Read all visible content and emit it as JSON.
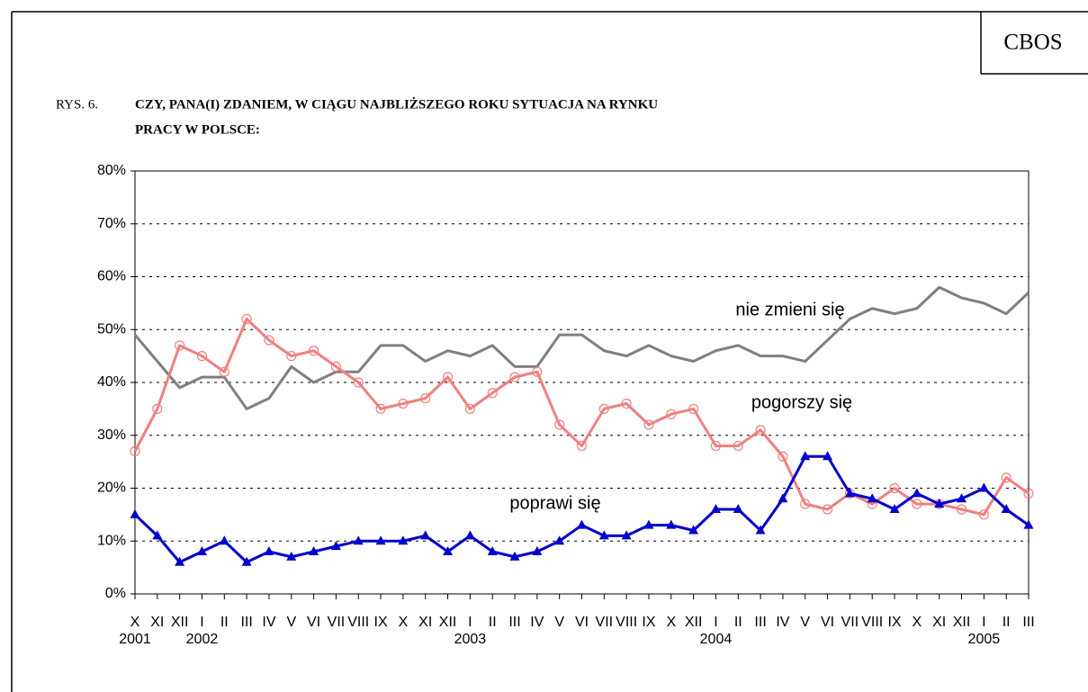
{
  "header": "CBOS",
  "chart_data": {
    "type": "line",
    "figure_label": "RYS. 6.",
    "title": [
      "CZY, PANA(I) ZDANIEM, W CIĄGU NAJBLIŻSZEGO ROKU SYTUACJA NA RYNKU",
      "PRACY W POLSCE:"
    ],
    "categories": [
      "X",
      "XI",
      "XII",
      "I",
      "II",
      "III",
      "IV",
      "V",
      "VI",
      "VII",
      "VIII",
      "IX",
      "X",
      "XI",
      "XII",
      "I",
      "II",
      "III",
      "IV",
      "V",
      "VI",
      "VII",
      "VIII",
      "IX",
      "X",
      "XII",
      "I",
      "II",
      "III",
      "IV",
      "V",
      "VI",
      "VII",
      "VIII",
      "IX",
      "X",
      "XI",
      "XII",
      "I",
      "II",
      "III"
    ],
    "year_labels": [
      "2001",
      null,
      null,
      "2002",
      null,
      null,
      null,
      null,
      null,
      null,
      null,
      null,
      null,
      null,
      null,
      "2003",
      null,
      null,
      null,
      null,
      null,
      null,
      null,
      null,
      null,
      null,
      "2004",
      null,
      null,
      null,
      null,
      null,
      null,
      null,
      null,
      null,
      null,
      null,
      "2005",
      null,
      null
    ],
    "series": [
      {
        "name": "nie zmieni się",
        "color": "#808080",
        "marker": "none",
        "values": [
          49,
          44,
          39,
          41,
          41,
          35,
          37,
          43,
          40,
          42,
          42,
          47,
          47,
          44,
          46,
          45,
          47,
          43,
          43,
          49,
          49,
          46,
          45,
          47,
          45,
          44,
          46,
          47,
          45,
          45,
          44,
          48,
          52,
          54,
          53,
          54,
          58,
          56,
          55,
          53,
          57
        ]
      },
      {
        "name": "pogorszy się",
        "color": "#f08080",
        "marker": "circle",
        "values": [
          27,
          35,
          47,
          45,
          42,
          52,
          48,
          45,
          46,
          43,
          40,
          35,
          36,
          37,
          41,
          35,
          38,
          41,
          42,
          32,
          28,
          35,
          36,
          32,
          34,
          35,
          28,
          28,
          31,
          26,
          17,
          16,
          19,
          17,
          20,
          17,
          17,
          16,
          15,
          22,
          19
        ]
      },
      {
        "name": "poprawi się",
        "color": "#0000cc",
        "marker": "triangle",
        "values": [
          15,
          11,
          6,
          8,
          10,
          6,
          8,
          7,
          8,
          9,
          10,
          10,
          10,
          11,
          8,
          11,
          8,
          7,
          8,
          10,
          13,
          11,
          11,
          13,
          13,
          12,
          16,
          16,
          12,
          18,
          26,
          26,
          19,
          18,
          16,
          19,
          17,
          18,
          20,
          16,
          13
        ]
      }
    ],
    "ylim": [
      0,
      80
    ],
    "yticks": [
      {
        "value": 0,
        "label": "0%"
      },
      {
        "value": 10,
        "label": "10%"
      },
      {
        "value": 20,
        "label": "20%"
      },
      {
        "value": 30,
        "label": "30%"
      },
      {
        "value": 40,
        "label": "40%"
      },
      {
        "value": 50,
        "label": "50%"
      },
      {
        "value": 60,
        "label": "60%"
      },
      {
        "value": 70,
        "label": "70%"
      },
      {
        "value": 80,
        "label": "80%"
      }
    ],
    "grid": true
  }
}
